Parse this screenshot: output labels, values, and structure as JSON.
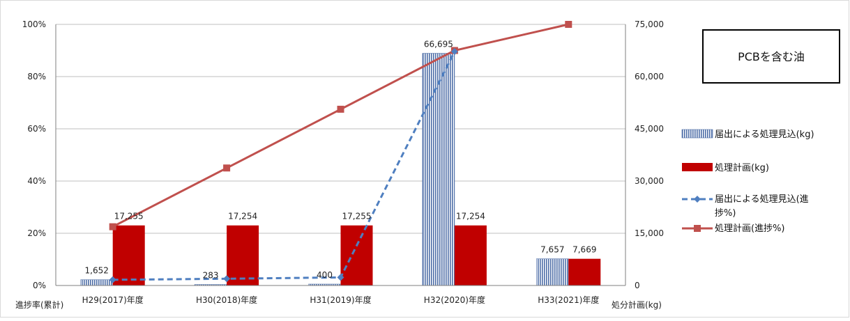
{
  "chart_data": {
    "type": "bar",
    "title": "PCBを含む油",
    "categories": [
      "H29(2017)年度",
      "H30(2018)年度",
      "H31(2019)年度",
      "H32(2020)年度",
      "H33(2021)年度"
    ],
    "y_left_label": "進捗率(累計)",
    "y_right_label": "処分計画(kg)",
    "y_left_ticks": [
      "0%",
      "20%",
      "40%",
      "60%",
      "80%",
      "100%"
    ],
    "y_right_ticks": [
      "0",
      "15,000",
      "30,000",
      "45,000",
      "60,000",
      "75,000"
    ],
    "y_left_range": [
      0,
      100
    ],
    "y_right_range": [
      0,
      75000
    ],
    "grid": true,
    "legend_position": "right",
    "series": [
      {
        "name": "届出による処理見込(kg)",
        "kind": "bar",
        "axis": "right",
        "color": "#4f6fa8",
        "pattern": "vertical-stripes",
        "values": [
          1652,
          283,
          400,
          66695,
          7657
        ],
        "labels": [
          "1,652",
          "283",
          "400",
          "66,695",
          "7,657"
        ]
      },
      {
        "name": "処理計画(kg)",
        "kind": "bar",
        "axis": "right",
        "color": "#c00000",
        "values": [
          17255,
          17254,
          17255,
          17254,
          7669
        ],
        "labels": [
          "17,255",
          "17,254",
          "17,255",
          "17,254",
          "7,669"
        ]
      },
      {
        "name": "届出による処理見込(進捗%)",
        "kind": "line",
        "axis": "left",
        "color": "#4f7fc0",
        "dashed": true,
        "marker": "diamond",
        "values": [
          2.2,
          2.6,
          3.1,
          89.6,
          null
        ]
      },
      {
        "name": "処理計画(進捗%)",
        "kind": "line",
        "axis": "left",
        "color": "#c0504d",
        "marker": "square",
        "values": [
          22.5,
          45.0,
          67.5,
          90.0,
          100.0
        ]
      }
    ]
  }
}
